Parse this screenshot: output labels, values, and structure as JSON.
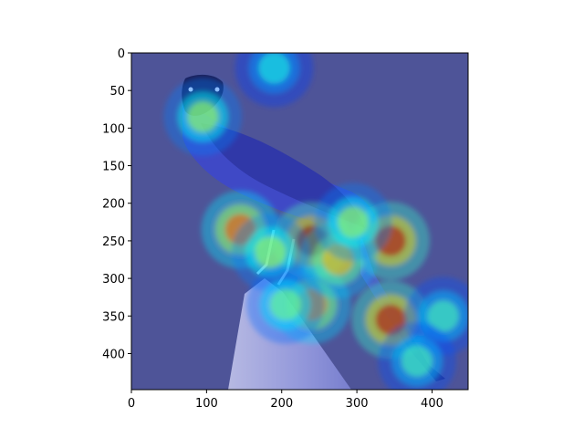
{
  "chart_data": {
    "type": "heatmap",
    "title": "",
    "xlabel": "",
    "ylabel": "",
    "image_size": [
      448,
      448
    ],
    "xlim": [
      0,
      448
    ],
    "ylim": [
      448,
      0
    ],
    "x_ticks": [
      0,
      100,
      200,
      300,
      400
    ],
    "y_ticks": [
      0,
      50,
      100,
      150,
      200,
      250,
      300,
      350,
      400
    ],
    "x_tick_labels": [
      "0",
      "100",
      "200",
      "300",
      "400"
    ],
    "y_tick_labels": [
      "0",
      "50",
      "100",
      "150",
      "200",
      "250",
      "300",
      "350",
      "400"
    ],
    "colormap": "jet",
    "underlying_image": "bird perched on white post (blue-tinted photo)",
    "hotspots": [
      {
        "x": 240,
        "y": 250,
        "intensity": 1.0
      },
      {
        "x": 345,
        "y": 250,
        "intensity": 0.95
      },
      {
        "x": 345,
        "y": 355,
        "intensity": 0.95
      },
      {
        "x": 145,
        "y": 235,
        "intensity": 0.8
      },
      {
        "x": 240,
        "y": 335,
        "intensity": 0.75
      },
      {
        "x": 275,
        "y": 275,
        "intensity": 0.7
      },
      {
        "x": 185,
        "y": 265,
        "intensity": 0.55
      },
      {
        "x": 295,
        "y": 225,
        "intensity": 0.55
      },
      {
        "x": 95,
        "y": 85,
        "intensity": 0.55
      },
      {
        "x": 205,
        "y": 335,
        "intensity": 0.5
      },
      {
        "x": 415,
        "y": 350,
        "intensity": 0.45
      },
      {
        "x": 380,
        "y": 410,
        "intensity": 0.45
      },
      {
        "x": 190,
        "y": 20,
        "intensity": 0.4
      }
    ]
  }
}
